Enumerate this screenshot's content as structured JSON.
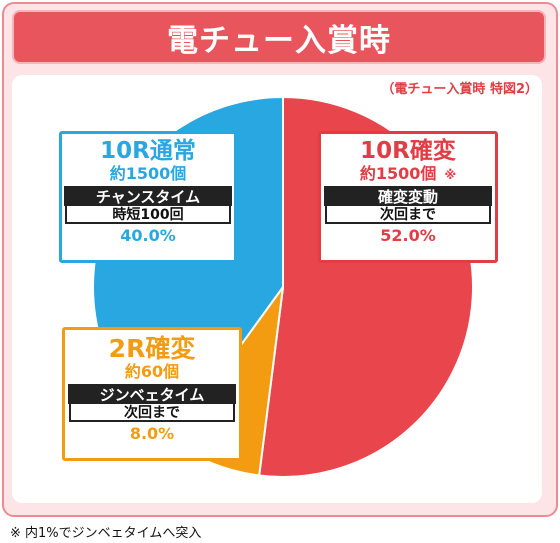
{
  "header": {
    "title": "電チュー入賞時"
  },
  "subtitle": "（電チュー入賞時 特図2）",
  "footnote": "※ 内1%でジンベェタイムへ突入",
  "chart_data": {
    "type": "pie",
    "title": "電チュー入賞時",
    "subtitle": "（電チュー入賞時 特図2）",
    "slices": [
      {
        "label": "10R確変",
        "count_label": "約1500個",
        "mark": "※",
        "mode": "確変変動",
        "detail": "次回まで",
        "value": 52.0,
        "value_label": "52.0%",
        "color": "#e8454d"
      },
      {
        "label": "2R確変",
        "count_label": "約60個",
        "mode": "ジンベェタイム",
        "detail": "次回まで",
        "value": 8.0,
        "value_label": "8.0%",
        "color": "#f39c12"
      },
      {
        "label": "10R通常",
        "count_label": "約1500個",
        "mode": "チャンスタイム",
        "detail": "時短100回",
        "value": 40.0,
        "value_label": "40.0%",
        "color": "#29a7e1"
      }
    ]
  }
}
